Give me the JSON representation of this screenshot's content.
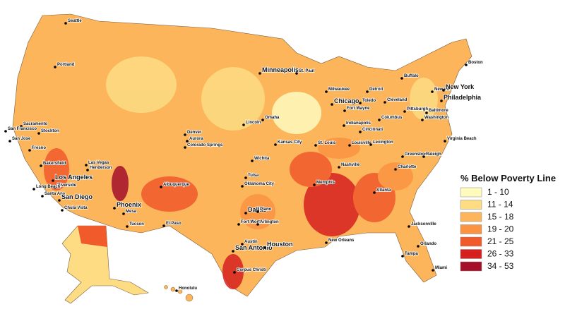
{
  "legend": {
    "title": "% Below Poverty Line",
    "items": [
      {
        "label": "1 - 10",
        "color": "#fffbbd"
      },
      {
        "label": "11 - 14",
        "color": "#fddc84"
      },
      {
        "label": "15 - 18",
        "color": "#fcb55a"
      },
      {
        "label": "19 - 20",
        "color": "#fa9443"
      },
      {
        "label": "21 - 25",
        "color": "#f15a2b"
      },
      {
        "label": "26 - 33",
        "color": "#d6201f"
      },
      {
        "label": "34 - 53",
        "color": "#a50f2a"
      }
    ]
  },
  "cities": [
    "Seattle",
    "Portland",
    "Minneapolis",
    "St. Paul",
    "Boston",
    "Buffalo",
    "Detroit",
    "Milwaukee",
    "Newark",
    "New York",
    "Toledo",
    "Cleveland",
    "Chicago",
    "Philadelphia",
    "Fort Wayne",
    "Pittsburgh",
    "Baltimore",
    "Sacramento",
    "Omaha",
    "Lincoln",
    "Indianapolis",
    "Columbus",
    "Washington",
    "Stockton",
    "San Francisco",
    "Denver",
    "Cincinnati",
    "Aurora",
    "San Jose",
    "Colorado Springs",
    "Kansas City",
    "St. Louis",
    "Louisville",
    "Lexington",
    "Virginia Beach",
    "Fresno",
    "Wichita",
    "Las Vegas",
    "Henderson",
    "Greensboro",
    "Raleigh",
    "Nashville",
    "Bakersfield",
    "Tulsa",
    "Charlotte",
    "Los Angeles",
    "Albuquerque",
    "Oklahoma City",
    "Memphis",
    "Riverside",
    "Long Beach",
    "Santa Ana",
    "Atlanta",
    "San Diego",
    "Phoenix",
    "Chula Vista",
    "Mesa",
    "Dallas",
    "Plano",
    "Fort Worth",
    "Arlington",
    "Jacksonville",
    "Tucson",
    "El Paso",
    "Austin",
    "New Orleans",
    "Orlando",
    "San Antonio",
    "Houston",
    "Tampa",
    "Miami",
    "Corpus Christi",
    "Honolulu"
  ]
}
